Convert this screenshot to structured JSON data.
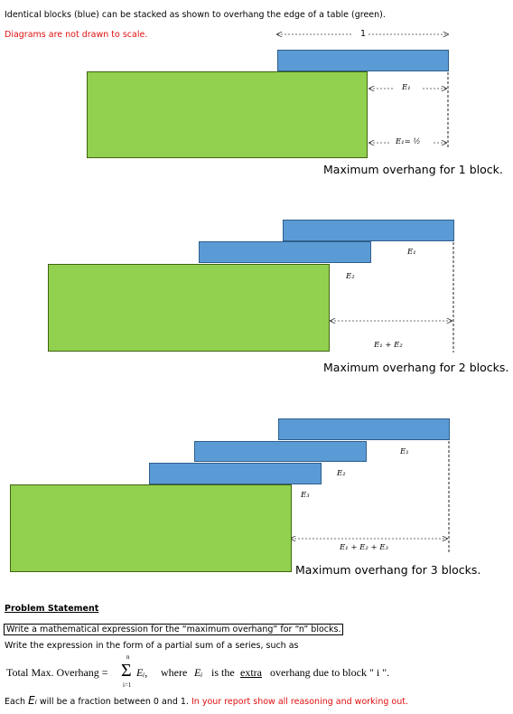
{
  "intro": {
    "line1": "Identical blocks (blue) can be stacked as shown to overhang the edge of a table (green).",
    "note": "Diagrams are not drawn to scale."
  },
  "diagram1": {
    "top_label": "1",
    "e1": "E₁",
    "e1_half": "E₁= ½",
    "caption": "Maximum overhang for 1 block."
  },
  "diagram2": {
    "e1": "E₁",
    "e2": "E₂",
    "sum": "E₁ + E₂",
    "caption": "Maximum overhang for 2 blocks."
  },
  "diagram3": {
    "e1": "E₁",
    "e2": "E₂",
    "e3": "E₃",
    "sum": "E₁ + E₂ + E₃",
    "caption": "Maximum overhang for 3 blocks."
  },
  "problem": {
    "heading": "Problem Statement",
    "task": "Write a mathematical expression for the “maximum overhang” for “n” blocks.",
    "form_hint": "Write the expression in the form of a partial sum of a series, such as",
    "formula_lhs": "Total Max. Overhang =",
    "sigma": "Σ",
    "sigma_top": "n",
    "sigma_bottom": "i=1",
    "term": "Eᵢ,",
    "where": "where",
    "where_var": "Eᵢ",
    "is_the": "is the",
    "extra": "extra",
    "due_to": "overhang due to block \" i \".",
    "each_prefix": "Each",
    "each_var": "Eᵢ",
    "each_suffix": "will be a fraction between 0 and 1.",
    "report": "In your report show all reasoning and working out."
  },
  "colors": {
    "table_green": "#92d050",
    "block_blue": "#5b9bd5",
    "note_red": "#e01010"
  }
}
